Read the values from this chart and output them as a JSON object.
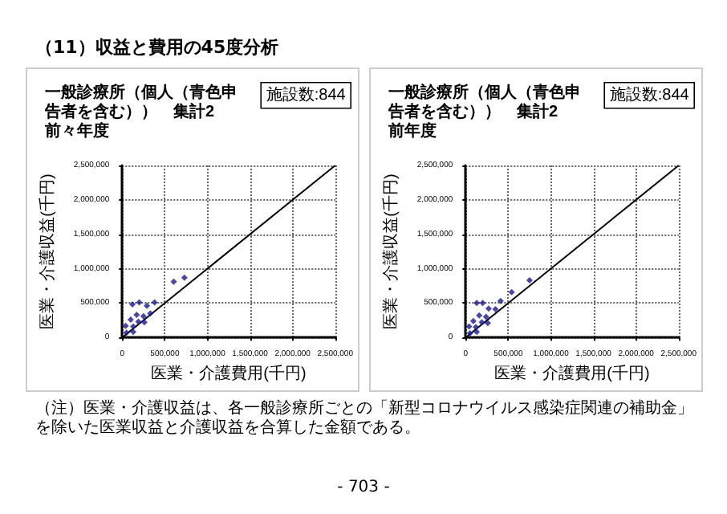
{
  "chart_data": [
    {
      "type": "scatter",
      "title": "一般診療所（個人（青色申告者を含む））　集計2",
      "subtitle": "前々年度",
      "xlabel": "医業・介護費用(千円)",
      "ylabel": "医業・介護収益(千円)",
      "annotations": [
        "施設数:844",
        "（11）収益と費用の45度分析",
        "（注）医業・介護収益は、各一般診療所ごとの「新型コロナウイルス感染症関連の補助金」を除いた医業収益と介護収益を合算した金額である。",
        "- 703 -"
      ],
      "xlim": [
        0,
        2500000
      ],
      "ylim": [
        0,
        2500000
      ],
      "xticks": [
        {
          "value": 0,
          "label": "0"
        },
        {
          "value": 500000,
          "label": "500,000"
        },
        {
          "value": 1000000,
          "label": "1,000,000"
        },
        {
          "value": 1500000,
          "label": "1,500,000"
        },
        {
          "value": 2000000,
          "label": "2,000,000"
        },
        {
          "value": 2500000,
          "label": "2,500,000"
        }
      ],
      "yticks": [
        {
          "value": 0,
          "label": "0"
        },
        {
          "value": 500000,
          "label": "500,000"
        },
        {
          "value": 1000000,
          "label": "1,000,000"
        },
        {
          "value": 1500000,
          "label": "1,500,000"
        },
        {
          "value": 2000000,
          "label": "2,000,000"
        },
        {
          "value": 2500000,
          "label": "2,500,000"
        }
      ],
      "grid": true,
      "marker": "diamond",
      "series": [
        {
          "type": "scatter",
          "color": "#1a1a8c",
          "x": [
            605000,
            730000,
            380000,
            290000,
            200000,
            120000,
            330000,
            250000,
            170000,
            100000,
            190000,
            40000,
            130000,
            50000,
            130000,
            260000
          ],
          "values": [
            810000,
            870000,
            510000,
            460000,
            510000,
            480000,
            350000,
            310000,
            330000,
            260000,
            230000,
            170000,
            160000,
            70000,
            80000,
            220000
          ]
        },
        {
          "type": "line",
          "color": "#000000",
          "x": [
            0,
            2500000
          ],
          "values": [
            0,
            2500000
          ],
          "marker": "none"
        }
      ]
    },
    {
      "type": "scatter",
      "title": "一般診療所（個人（青色申告者を含む））　集計2",
      "subtitle": "前年度",
      "xlabel": "医業・介護費用(千円)",
      "ylabel": "医業・介護収益(千円)",
      "annotations": [
        "施設数:844"
      ],
      "xlim": [
        0,
        2500000
      ],
      "ylim": [
        0,
        2500000
      ],
      "xticks": [
        {
          "value": 0,
          "label": "0"
        },
        {
          "value": 500000,
          "label": "500,000"
        },
        {
          "value": 1000000,
          "label": "1,000,000"
        },
        {
          "value": 1500000,
          "label": "1,500,000"
        },
        {
          "value": 2000000,
          "label": "2,000,000"
        },
        {
          "value": 2500000,
          "label": "2,500,000"
        }
      ],
      "yticks": [
        {
          "value": 0,
          "label": "0"
        },
        {
          "value": 500000,
          "label": "500,000"
        },
        {
          "value": 1000000,
          "label": "1,000,000"
        },
        {
          "value": 1500000,
          "label": "1,500,000"
        },
        {
          "value": 2000000,
          "label": "2,000,000"
        },
        {
          "value": 2500000,
          "label": "2,500,000"
        }
      ],
      "grid": true,
      "marker": "diamond",
      "series": [
        {
          "type": "scatter",
          "color": "#1a1a8c",
          "x": [
            750000,
            540000,
            410000,
            200000,
            130000,
            270000,
            350000,
            240000,
            160000,
            90000,
            190000,
            40000,
            120000,
            50000,
            130000,
            260000
          ],
          "values": [
            830000,
            660000,
            530000,
            500000,
            500000,
            420000,
            410000,
            300000,
            320000,
            240000,
            220000,
            160000,
            150000,
            60000,
            80000,
            210000
          ]
        },
        {
          "type": "line",
          "color": "#000000",
          "x": [
            0,
            2500000
          ],
          "values": [
            0,
            2500000
          ],
          "marker": "none"
        }
      ]
    }
  ]
}
